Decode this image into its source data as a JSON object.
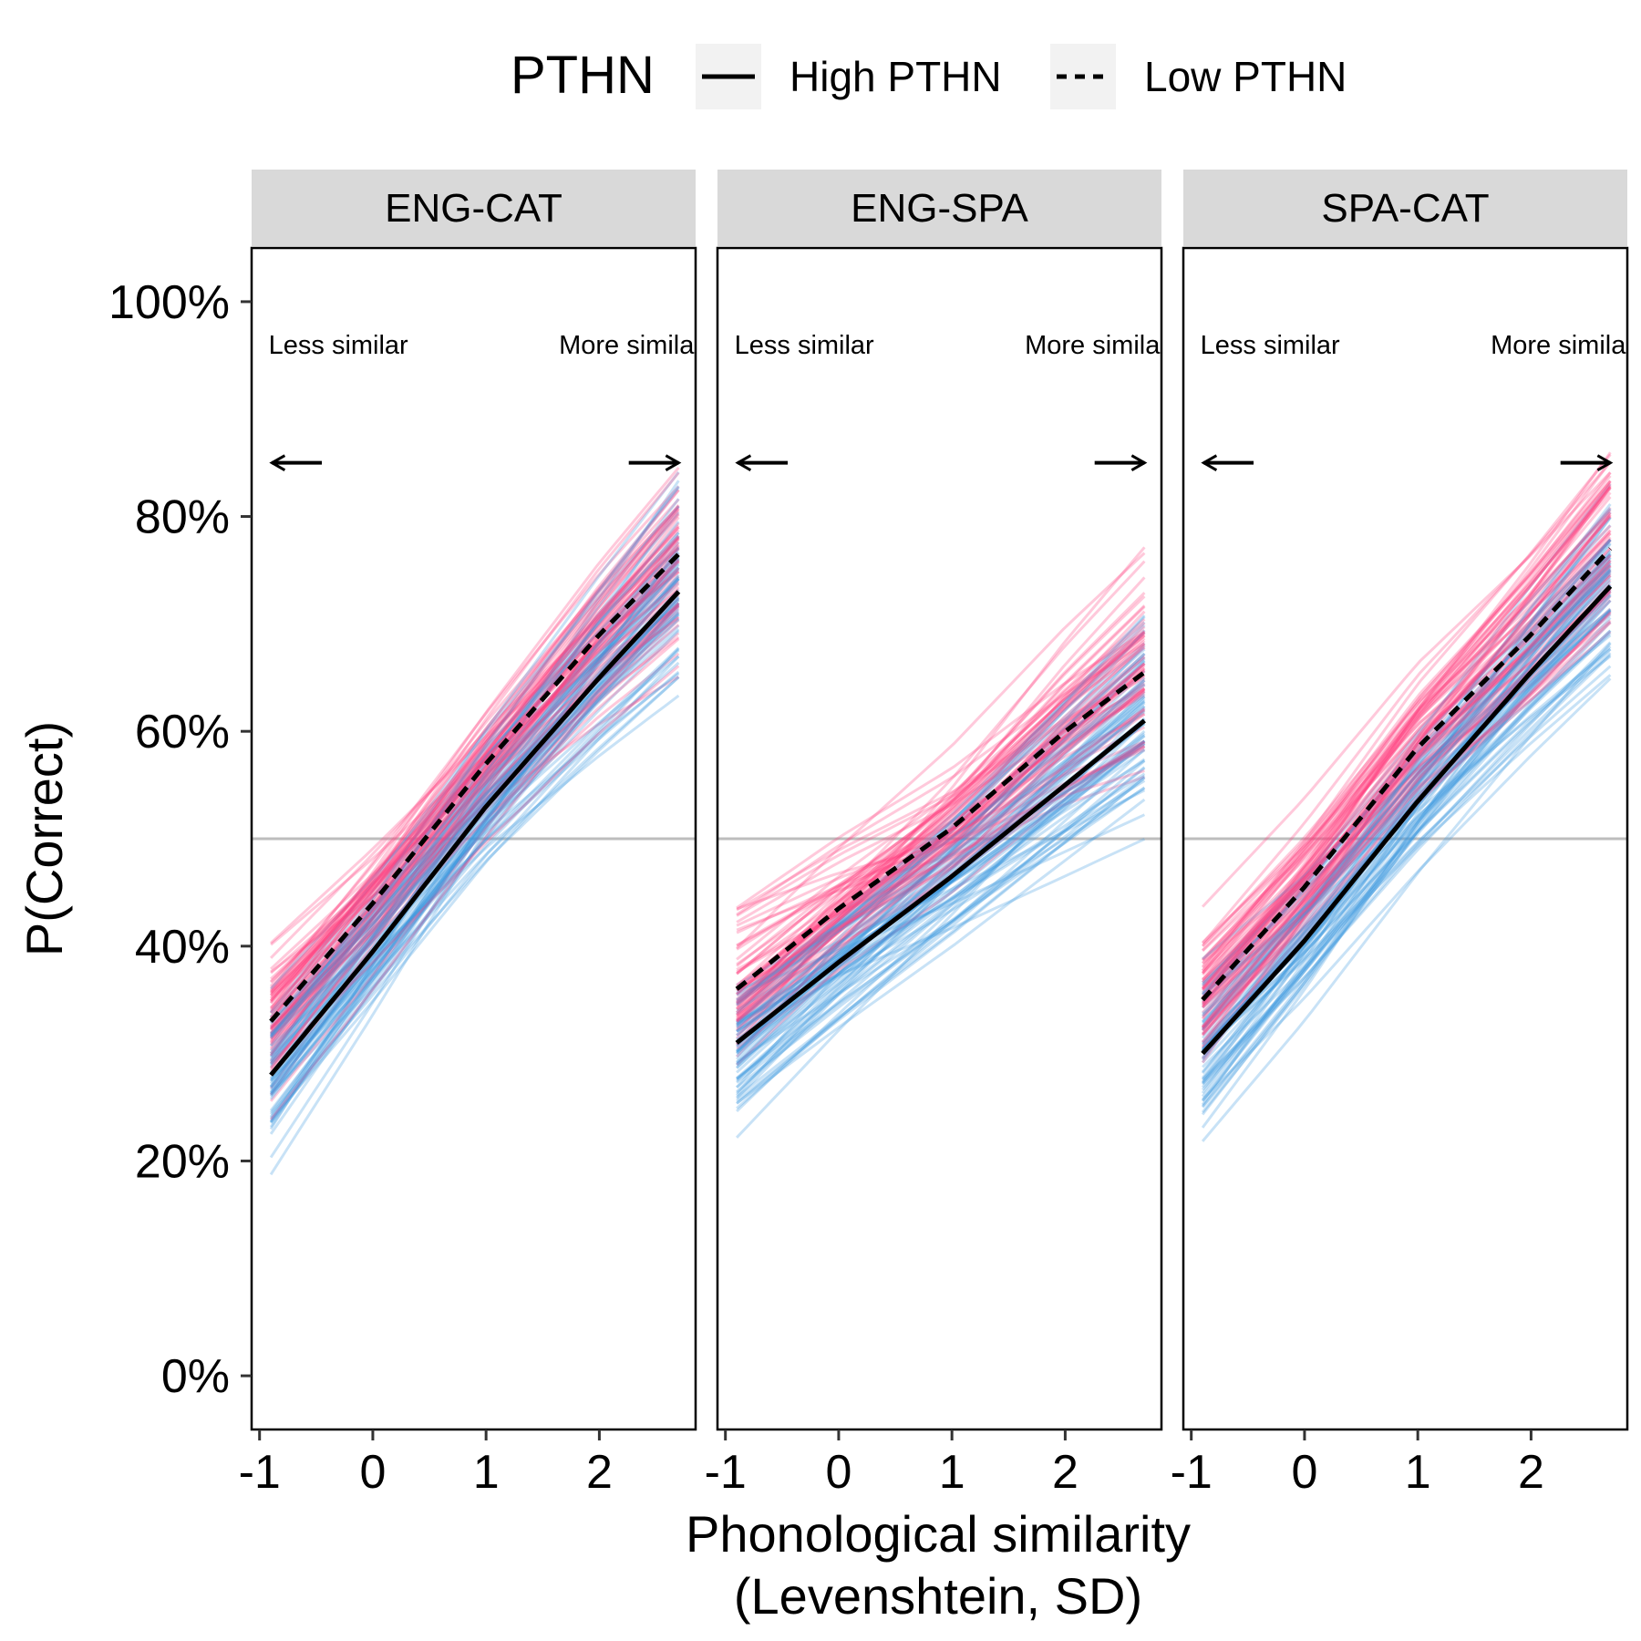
{
  "chart_data": {
    "type": "line",
    "legend": {
      "title": "PTHN",
      "position": "top",
      "entries": [
        {
          "label": "High PTHN",
          "linetype": "solid"
        },
        {
          "label": "Low PTHN",
          "linetype": "dashed"
        }
      ]
    },
    "xlabel": "Phonological similarity",
    "xlabel2": "(Levenshtein, SD)",
    "ylabel": "P(Correct)",
    "xlim": [
      -1.07,
      2.85
    ],
    "ylim": [
      -0.05,
      1.05
    ],
    "x_ticks": [
      {
        "value": -1,
        "label": "-1"
      },
      {
        "value": 0,
        "label": "0"
      },
      {
        "value": 1,
        "label": "1"
      },
      {
        "value": 2,
        "label": "2"
      }
    ],
    "y_ticks": [
      {
        "value": 0,
        "label": "0%"
      },
      {
        "value": 0.2,
        "label": "20%"
      },
      {
        "value": 0.4,
        "label": "40%"
      },
      {
        "value": 0.6,
        "label": "60%"
      },
      {
        "value": 0.8,
        "label": "80%"
      },
      {
        "value": 1.0,
        "label": "100%"
      }
    ],
    "reference_line_y": 0.5,
    "grid": false,
    "annotations": {
      "left_text": "Less similar",
      "right_text": "More similar",
      "arrow_y": 0.85
    },
    "colors": {
      "low_pthn_draws": "#ff3d7f",
      "high_pthn_draws": "#3a96e0",
      "mean_lines": "#000000",
      "reference_line": "#bdbdbd",
      "strip_background": "#d9d9d9"
    },
    "panels": [
      {
        "label": "ENG-CAT",
        "series": [
          {
            "name": "High PTHN",
            "linetype": "solid",
            "x": [
              -0.9,
              0,
              1,
              2,
              2.7
            ],
            "y": [
              0.28,
              0.395,
              0.53,
              0.65,
              0.73
            ]
          },
          {
            "name": "Low PTHN",
            "linetype": "dashed",
            "x": [
              -0.9,
              0,
              1,
              2,
              2.7
            ],
            "y": [
              0.33,
              0.44,
              0.57,
              0.69,
              0.765
            ]
          }
        ]
      },
      {
        "label": "ENG-SPA",
        "series": [
          {
            "name": "High PTHN",
            "linetype": "solid",
            "x": [
              -0.9,
              0,
              1,
              2,
              2.7
            ],
            "y": [
              0.31,
              0.385,
              0.465,
              0.55,
              0.61
            ]
          },
          {
            "name": "Low PTHN",
            "linetype": "dashed",
            "x": [
              -0.9,
              0,
              1,
              2,
              2.7
            ],
            "y": [
              0.36,
              0.435,
              0.51,
              0.6,
              0.655
            ]
          }
        ]
      },
      {
        "label": "SPA-CAT",
        "series": [
          {
            "name": "High PTHN",
            "linetype": "solid",
            "x": [
              -0.9,
              0,
              1,
              2,
              2.7
            ],
            "y": [
              0.3,
              0.405,
              0.535,
              0.655,
              0.735
            ]
          },
          {
            "name": "Low PTHN",
            "linetype": "dashed",
            "x": [
              -0.9,
              0,
              1,
              2,
              2.7
            ],
            "y": [
              0.35,
              0.455,
              0.585,
              0.69,
              0.77
            ]
          }
        ]
      }
    ]
  }
}
